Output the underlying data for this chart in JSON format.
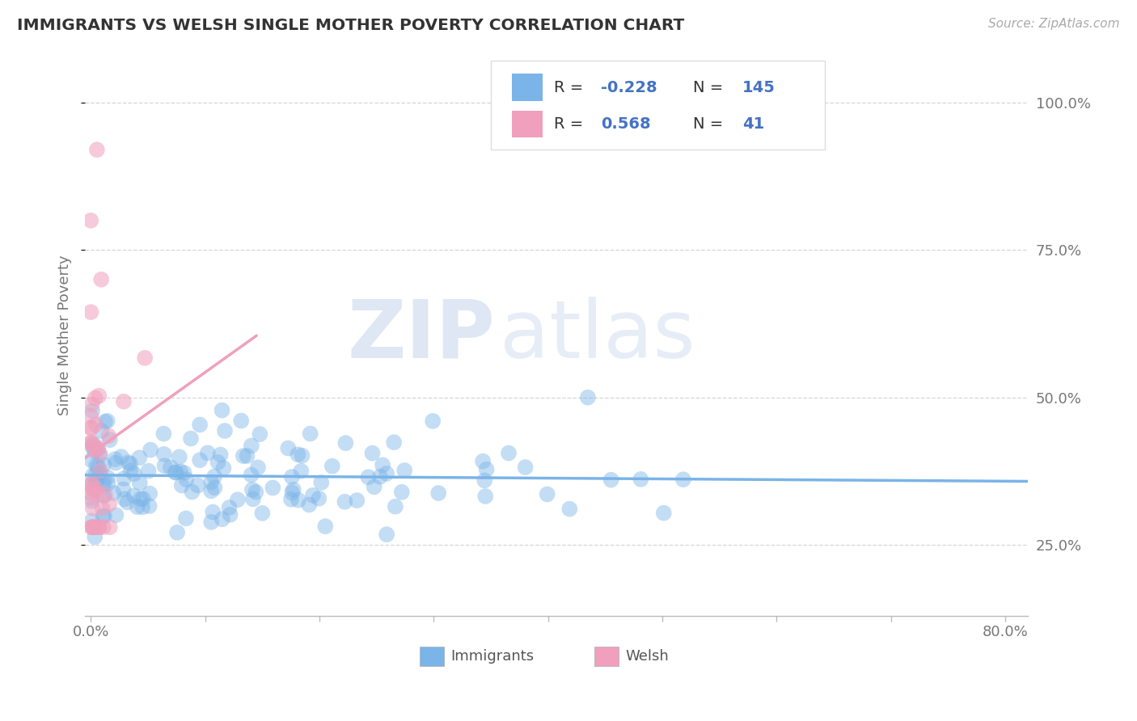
{
  "title": "IMMIGRANTS VS WELSH SINGLE MOTHER POVERTY CORRELATION CHART",
  "source_text": "Source: ZipAtlas.com",
  "ylabel": "Single Mother Poverty",
  "xlim": [
    -0.005,
    0.82
  ],
  "ylim": [
    0.13,
    1.08
  ],
  "blue_color": "#7ab4e8",
  "pink_color": "#f0a0bc",
  "blue_N": 145,
  "pink_N": 41,
  "watermark_zip": "ZIP",
  "watermark_atlas": "atlas",
  "background_color": "#ffffff",
  "grid_color": "#cccccc",
  "blue_seed": 42,
  "pink_seed": 99
}
